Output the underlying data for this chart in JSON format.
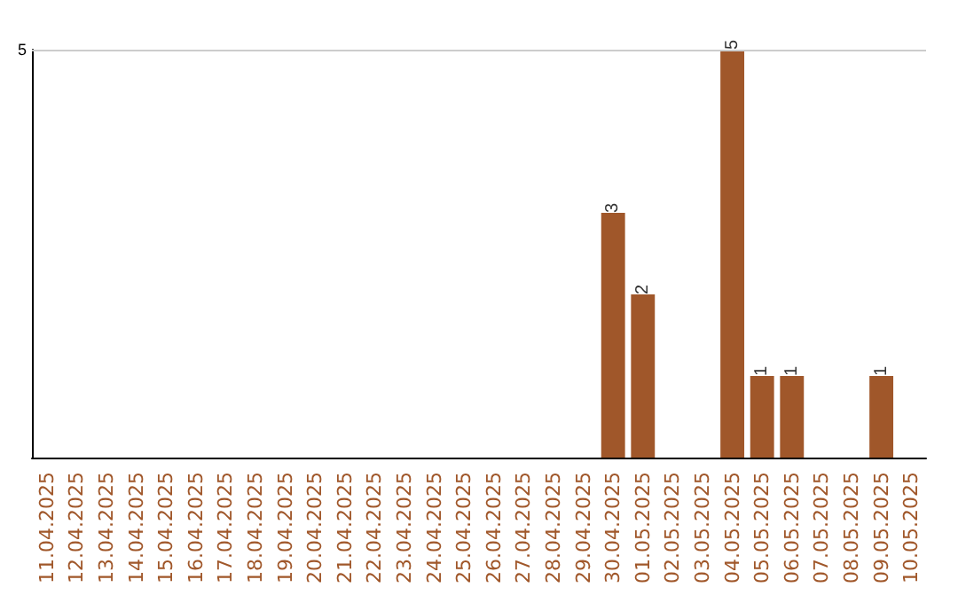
{
  "chart_data": {
    "type": "bar",
    "categories": [
      "11.04.2025",
      "12.04.2025",
      "13.04.2025",
      "14.04.2025",
      "15.04.2025",
      "16.04.2025",
      "17.04.2025",
      "18.04.2025",
      "19.04.2025",
      "20.04.2025",
      "21.04.2025",
      "22.04.2025",
      "23.04.2025",
      "24.04.2025",
      "25.04.2025",
      "26.04.2025",
      "27.04.2025",
      "28.04.2025",
      "29.04.2025",
      "30.04.2025",
      "01.05.2025",
      "02.05.2025",
      "03.05.2025",
      "04.05.2025",
      "05.05.2025",
      "06.05.2025",
      "07.05.2025",
      "08.05.2025",
      "09.05.2025",
      "10.05.2025"
    ],
    "values": [
      null,
      null,
      null,
      null,
      null,
      null,
      null,
      null,
      null,
      null,
      null,
      null,
      null,
      null,
      null,
      null,
      null,
      null,
      null,
      3,
      2,
      null,
      null,
      5,
      1,
      1,
      null,
      null,
      1,
      null
    ],
    "data_labels": true,
    "color": "#a0572a",
    "ref_lines": [
      {
        "axis": "y",
        "value": 5,
        "label": "5",
        "color": "#cccccc"
      }
    ]
  }
}
